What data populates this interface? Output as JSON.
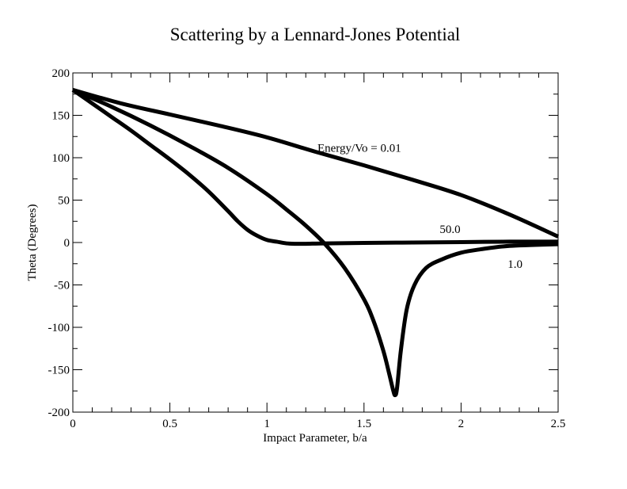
{
  "chart_data": {
    "type": "line",
    "title": "Scattering by a Lennard-Jones Potential",
    "xlabel": "Impact Parameter, b/a",
    "ylabel": "Theta (Degrees)",
    "xlim": [
      0,
      2.5
    ],
    "ylim": [
      -200,
      200
    ],
    "x_ticks": [
      0,
      0.5,
      1,
      1.5,
      2,
      2.5
    ],
    "x_tick_labels": [
      "0",
      "0.5",
      "1",
      "1.5",
      "2",
      "2.5"
    ],
    "y_ticks": [
      -200,
      -150,
      -100,
      -50,
      0,
      50,
      100,
      150,
      200
    ],
    "y_tick_labels": [
      "-200",
      "-150",
      "-100",
      "-50",
      "0",
      "50",
      "100",
      "150",
      "200"
    ],
    "grid": false,
    "legend": "none",
    "line_color": "#000000",
    "series": [
      {
        "x": [
          0,
          0.25,
          0.5,
          0.75,
          1.0,
          1.25,
          1.5,
          1.75,
          2.0,
          2.25,
          2.5
        ],
        "y": [
          180,
          164,
          151,
          138,
          124,
          107,
          91,
          74,
          56,
          33,
          7
        ]
      },
      {
        "x": [
          0,
          0.1,
          0.2,
          0.3,
          0.4,
          0.5,
          0.6,
          0.7,
          0.8,
          0.85,
          0.9,
          0.95,
          1.0,
          1.05,
          1.1,
          1.15,
          1.2,
          1.3,
          1.5,
          1.75,
          2.0,
          2.25,
          2.5
        ],
        "y": [
          180,
          164,
          148,
          132,
          115,
          98,
          80,
          60,
          37,
          25,
          15,
          8,
          3,
          1,
          -1,
          -1.5,
          -1.5,
          -1,
          -0.5,
          0,
          0.5,
          1,
          1
        ]
      },
      {
        "x": [
          0,
          0.2,
          0.4,
          0.6,
          0.8,
          1.0,
          1.1,
          1.2,
          1.3,
          1.4,
          1.5,
          1.55,
          1.6,
          1.63,
          1.65,
          1.66,
          1.67,
          1.69,
          1.72,
          1.76,
          1.82,
          1.9,
          2.0,
          2.1,
          2.25,
          2.5
        ],
        "y": [
          180,
          160,
          138,
          114,
          88,
          57,
          39,
          20,
          -2,
          -30,
          -67,
          -93,
          -128,
          -155,
          -174,
          -180,
          -172,
          -127,
          -79,
          -50,
          -30,
          -20,
          -12,
          -8,
          -4,
          -2
        ]
      }
    ],
    "annotations": [
      {
        "text": "Energy/Vo = 0.01",
        "x": 1.26,
        "y": 107
      },
      {
        "text": "50.0",
        "x": 1.89,
        "y": 11
      },
      {
        "text": "1.0",
        "x": 2.24,
        "y": -30
      }
    ]
  }
}
